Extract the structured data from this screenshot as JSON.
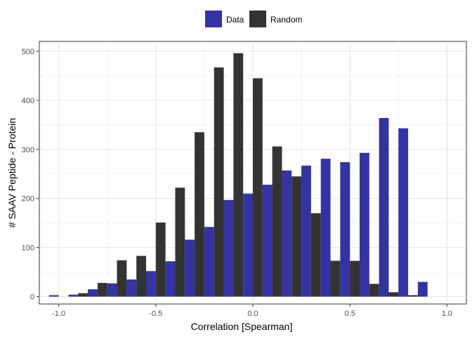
{
  "chart_data": {
    "type": "bar",
    "xlabel": "Correlation [Spearman]",
    "ylabel": "# SAAV Peptide - Protein",
    "xlim": [
      -1.1,
      1.1
    ],
    "ylim": [
      -15,
      520
    ],
    "x_ticks": [
      -1.0,
      -0.5,
      0.0,
      0.5,
      1.0
    ],
    "x_tick_labels": [
      "-1.0",
      "-0.5",
      "0.0",
      "0.5",
      "1.0"
    ],
    "y_ticks": [
      0,
      100,
      200,
      300,
      400,
      500
    ],
    "y_tick_labels": [
      "0",
      "100",
      "200",
      "300",
      "400",
      "500"
    ],
    "bin_width": 0.1,
    "grid": true,
    "legend_position": "top",
    "bin_centers": [
      -1.0,
      -0.9,
      -0.8,
      -0.7,
      -0.6,
      -0.5,
      -0.4,
      -0.3,
      -0.2,
      -0.1,
      0.0,
      0.1,
      0.2,
      0.3,
      0.4,
      0.5,
      0.6,
      0.7,
      0.8,
      0.9,
      1.0
    ],
    "series": [
      {
        "name": "Data",
        "color": "#3333a1",
        "values": [
          3,
          4,
          15,
          27,
          35,
          52,
          72,
          116,
          142,
          197,
          210,
          228,
          257,
          267,
          281,
          274,
          293,
          364,
          343,
          30,
          0
        ]
      },
      {
        "name": "Random",
        "color": "#333333",
        "values": [
          0,
          7,
          28,
          74,
          83,
          151,
          222,
          335,
          467,
          496,
          445,
          306,
          245,
          170,
          73,
          73,
          26,
          9,
          3,
          0,
          0
        ]
      }
    ]
  }
}
